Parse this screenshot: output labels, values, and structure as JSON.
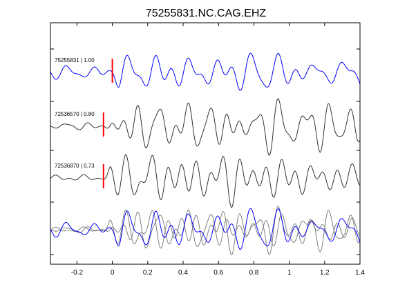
{
  "chart_data": {
    "type": "line",
    "title": "75255831.NC.CAG.EHZ",
    "xlabel": "",
    "ylabel": "",
    "xlim": [
      -0.35,
      1.4
    ],
    "xticks": [
      -0.2,
      0,
      0.2,
      0.4,
      0.6,
      0.8,
      1,
      1.2,
      1.4
    ],
    "xtick_labels": [
      "-0.2",
      "0",
      "0.2",
      "0.4",
      "0.6",
      "0.8",
      "1",
      "1.2",
      "1.4"
    ],
    "grid": false,
    "colors": {
      "target": "#0000ff",
      "neighbor": "#303030",
      "overlay_neighbor": "#808080",
      "pick": "#ff0000"
    },
    "traces": [
      {
        "label": "75255831 | 1.00",
        "pick_time": 0.0,
        "color": "#0000ff"
      },
      {
        "label": "72536570 | 0.80",
        "pick_time": -0.05,
        "color": "#303030"
      },
      {
        "label": "72536870 | 0.73",
        "pick_time": -0.05,
        "color": "#303030"
      }
    ],
    "overlay": {
      "description_visible": false
    }
  }
}
